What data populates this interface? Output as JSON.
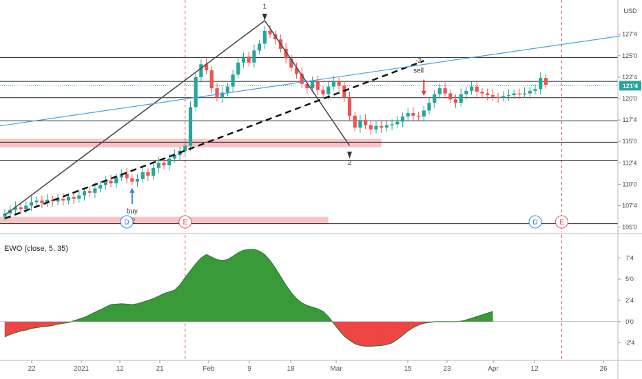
{
  "currency": "USD",
  "last_price_label": "121'4",
  "chart_data": [
    {
      "type": "candlestick",
      "grid": false,
      "x_tick_labels": [
        "22",
        "2021",
        "12",
        "21",
        "Feb",
        "9",
        "18",
        "Mar",
        "15",
        "23",
        "Apr",
        "12",
        "26"
      ],
      "y_tick_labels": [
        "127'4",
        "125'0",
        "122'4",
        "120'0",
        "117'4",
        "115'0",
        "112'4",
        "110'0",
        "107'4",
        "105'0"
      ],
      "y_ticks": [
        127.5,
        125.0,
        122.5,
        120.0,
        117.5,
        115.0,
        112.5,
        110.0,
        107.5,
        105.0
      ],
      "ylim": [
        104.4,
        131.5
      ],
      "last_price": 121.5,
      "horizontal_levels": [
        124.8,
        122.0,
        120.1,
        117.4,
        114.9,
        112.8,
        105.4
      ],
      "zones": [
        {
          "from_bar": 0,
          "to_bar": 71,
          "low": 114.3,
          "high": 115.3
        },
        {
          "from_bar": 0,
          "to_bar": 61,
          "low": 105.4,
          "high": 106.2
        }
      ],
      "candles_close": [
        106.6,
        107.0,
        107.3,
        107.1,
        107.5,
        107.9,
        108.1,
        107.8,
        108.2,
        108.0,
        108.3,
        108.1,
        108.5,
        108.3,
        108.7,
        109.2,
        109.0,
        109.5,
        109.9,
        110.4,
        110.1,
        110.8,
        111.2,
        110.7,
        110.3,
        110.6,
        111.4,
        111.0,
        111.9,
        112.5,
        112.2,
        113.0,
        113.4,
        113.9,
        114.5,
        119.0,
        122.5,
        124.0,
        123.3,
        121.2,
        120.1,
        120.7,
        121.4,
        122.8,
        124.2,
        124.9,
        124.2,
        125.6,
        126.4,
        127.9,
        127.5,
        126.9,
        125.8,
        124.7,
        123.6,
        122.9,
        121.7,
        121.2,
        122.0,
        121.0,
        120.5,
        121.4,
        122.0,
        121.5,
        120.1,
        118.0,
        116.6,
        117.5,
        116.9,
        116.4,
        116.8,
        116.6,
        116.9,
        117.0,
        117.3,
        117.9,
        118.3,
        118.0,
        117.9,
        118.6,
        119.5,
        120.5,
        121.2,
        120.6,
        119.9,
        119.5,
        120.5,
        120.9,
        121.4,
        120.8,
        120.6,
        120.4,
        120.2,
        120.1,
        120.3,
        120.4,
        120.6,
        120.5,
        120.6,
        120.9,
        121.1,
        122.4,
        121.6
      ],
      "trendlines": [
        {
          "style": "solid",
          "color": "#4a4a4a",
          "from": {
            "bar": 0,
            "price": 106.4
          },
          "to": {
            "bar": 49,
            "price": 129.1
          }
        },
        {
          "style": "solid",
          "color": "#4a4a4a",
          "from": {
            "bar": 49,
            "price": 129.1
          },
          "to": {
            "bar": 65,
            "price": 114.5
          }
        },
        {
          "style": "dashed",
          "color": "#111111",
          "from": {
            "bar": 0,
            "price": 106.0
          },
          "to": {
            "bar": 79,
            "price": 124.4
          }
        },
        {
          "style": "solid",
          "color": "#4a9fe0",
          "from": {
            "bar": -1,
            "price": 116.8
          },
          "to": {
            "bar": 116,
            "price": 127.3
          }
        }
      ],
      "event_markers": [
        {
          "bar": 23,
          "label": "D",
          "color": "#2e86de"
        },
        {
          "bar": 34,
          "label": "E",
          "color": "#e05560"
        },
        {
          "bar": 100,
          "label": "D",
          "color": "#2e86de"
        },
        {
          "bar": 105,
          "label": "E",
          "color": "#e05560"
        }
      ],
      "annotations": [
        {
          "text": "1",
          "bar": 49,
          "price": 130.5
        },
        {
          "text": "2",
          "bar": 65,
          "price": 112.3
        },
        {
          "text": "buy",
          "bar": 24,
          "price": 106.6
        },
        {
          "text": "-2",
          "bar": 24,
          "price": 105.5
        },
        {
          "text": "-2",
          "bar": 78,
          "price": 124.2
        },
        {
          "text": "sell",
          "bar": 78,
          "price": 123.0
        }
      ]
    },
    {
      "type": "area",
      "title": "EWO (close, 5, 35)",
      "grid": false,
      "y_tick_labels": [
        "7'4",
        "5'0",
        "2'4",
        "0'0",
        "-2'4"
      ],
      "y_ticks": [
        7.5,
        5.0,
        2.5,
        0.0,
        -2.5
      ],
      "ylim": [
        -4.4,
        10.2
      ],
      "positive_color": "#3a9a3a",
      "negative_color": "#ef4545",
      "values": [
        -1.8,
        -1.5,
        -1.3,
        -1.1,
        -1.0,
        -0.8,
        -0.7,
        -0.6,
        -0.55,
        -0.45,
        -0.3,
        -0.2,
        -0.1,
        0.1,
        0.3,
        0.5,
        0.8,
        1.1,
        1.4,
        1.7,
        2.0,
        2.05,
        2.1,
        2.05,
        2.0,
        2.1,
        2.3,
        2.5,
        2.7,
        3.0,
        3.3,
        3.5,
        3.7,
        4.3,
        5.2,
        6.0,
        6.8,
        7.5,
        7.9,
        7.6,
        7.3,
        7.2,
        7.3,
        7.7,
        8.1,
        8.4,
        8.5,
        8.5,
        8.3,
        7.9,
        7.2,
        6.3,
        5.3,
        4.3,
        3.4,
        2.7,
        2.2,
        1.9,
        1.7,
        1.5,
        1.2,
        0.6,
        -0.2,
        -1.0,
        -1.7,
        -2.2,
        -2.6,
        -2.8,
        -2.9,
        -2.9,
        -2.85,
        -2.8,
        -2.7,
        -2.5,
        -2.1,
        -1.6,
        -1.1,
        -0.7,
        -0.4,
        -0.2,
        -0.1,
        0.0,
        0.0,
        0.0,
        0.0,
        0.0,
        0.05,
        0.2,
        0.4,
        0.6,
        0.8,
        1.0,
        1.2
      ]
    }
  ]
}
